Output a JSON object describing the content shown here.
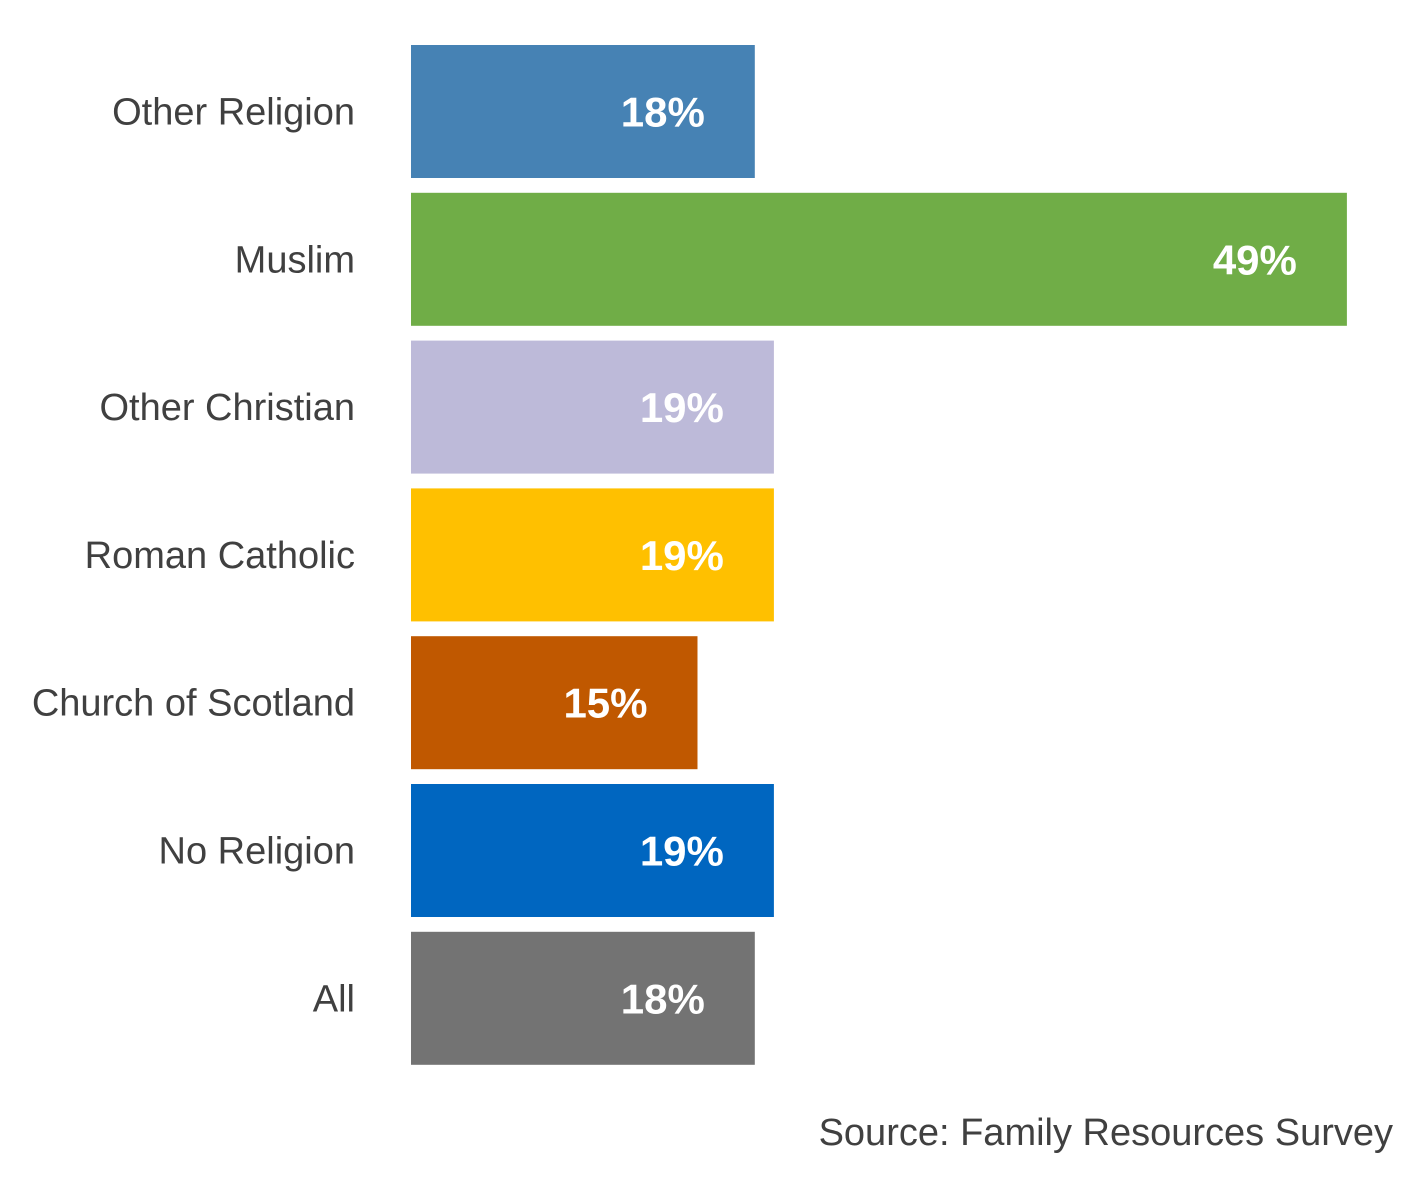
{
  "chart_data": {
    "type": "bar",
    "orientation": "horizontal",
    "categories": [
      "Other Religion",
      "Muslim",
      "Other Christian",
      "Roman Catholic",
      "Church of Scotland",
      "No Religion",
      "All"
    ],
    "values": [
      18,
      49,
      19,
      19,
      15,
      19,
      18
    ],
    "labels": [
      "18%",
      "49%",
      "19%",
      "19%",
      "15%",
      "19%",
      "18%"
    ],
    "colors": [
      "#4682B4",
      "#70AD47",
      "#BDBAD9",
      "#FFC000",
      "#C05800",
      "#0066C0",
      "#737373"
    ],
    "grid": false,
    "legend": "none"
  },
  "source": "Source: Family Resources Survey"
}
